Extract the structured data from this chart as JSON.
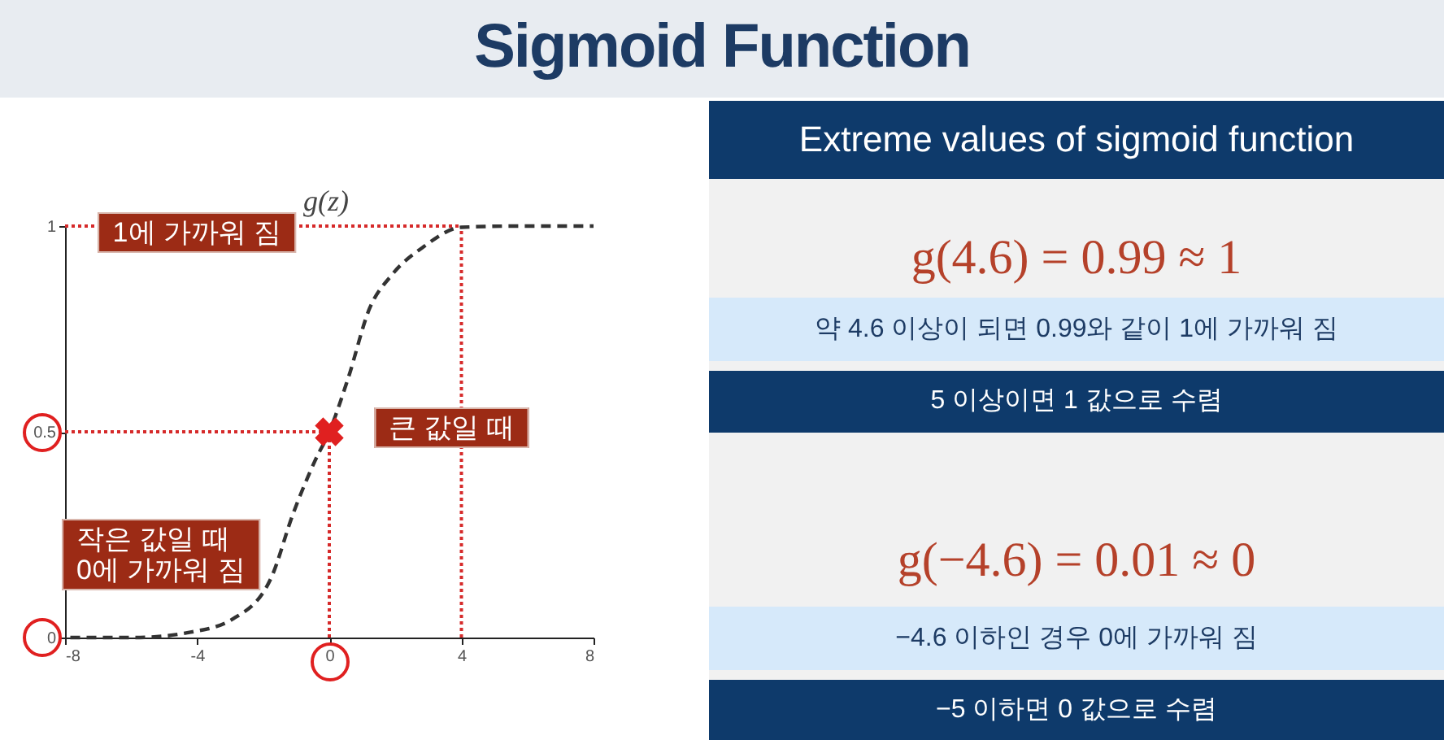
{
  "chart_data": [
    {
      "type": "line",
      "title": "Sigmoid Function",
      "ylabel": "g(z)",
      "xlim": [
        -8,
        8
      ],
      "xticks": [
        -8,
        -4,
        0,
        4,
        8
      ],
      "ylim": [
        0,
        1
      ],
      "yticks": [
        0,
        0.5,
        1
      ],
      "grid": false,
      "series": [
        {
          "color": "#333333",
          "line_style": "dashed",
          "marker": "none",
          "x": [
            -7.84,
            -5.87,
            -4.2,
            -2.9,
            -1.76,
            -1.1,
            -0.43,
            0,
            0.57,
            1.22,
            1.88,
            2.86,
            4.0,
            5.6,
            8
          ],
          "values": [
            0,
            0,
            0.013,
            0.046,
            0.145,
            0.3,
            0.43,
            0.5,
            0.63,
            0.8,
            0.88,
            0.95,
            0.997,
            1,
            1
          ]
        },
        {
          "type": "scatter",
          "color": "#e02020",
          "marker": "cross",
          "x": [
            0
          ],
          "values": [
            0.5
          ]
        }
      ],
      "ref_lines": [
        {
          "axis": "y",
          "value": 1,
          "color": "#d62a2a",
          "line_style": "dotted"
        },
        {
          "axis": "y",
          "value": 0.5,
          "color": "#d62a2a",
          "line_style": "dotted"
        },
        {
          "axis": "x",
          "value": 0,
          "color": "#d62a2a",
          "line_style": "dotted"
        },
        {
          "axis": "x",
          "value": 4,
          "color": "#d62a2a",
          "line_style": "dotted"
        }
      ],
      "annotations": [
        "1에 가까워 짐",
        "큰 값일 때",
        "작은 값일 때\n0에 가까워 짐"
      ]
    },
    {
      "type": "other",
      "title": "Extreme values of sigmoid function",
      "annotations": [
        "g(4.6) = 0.99 ≈ 1",
        "약 4.6 이상이 되면 0.99와 같이 1에 가까워 짐",
        "5 이상이면 1 값으로 수렴",
        "g(−4.6) = 0.01 ≈ 0",
        "−4.6 이하인 경우 0에 가까워 짐",
        "−5 이하면 0 값으로 수렴"
      ]
    }
  ]
}
